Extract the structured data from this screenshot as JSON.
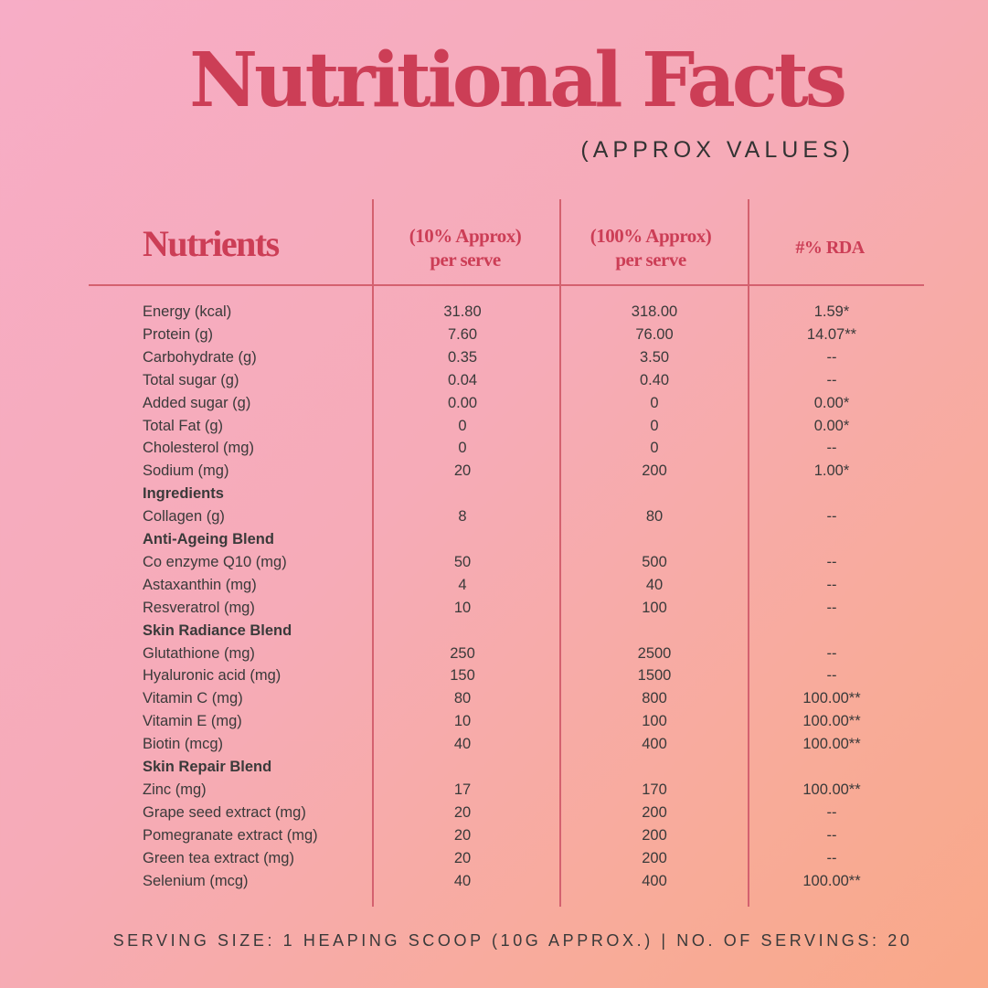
{
  "title": "Nutritional Facts",
  "subtitle": "(APPROX VALUES)",
  "headers": {
    "nutrients": "Nutrients",
    "col1_line1": "(10% Approx)",
    "col1_line2": "per serve",
    "col2_line1": "(100% Approx)",
    "col2_line2": "per serve",
    "col3": "#% RDA"
  },
  "rows": [
    {
      "name": "Energy (kcal)",
      "v1": "31.80",
      "v2": "318.00",
      "rda": "1.59*"
    },
    {
      "name": "Protein (g)",
      "v1": "7.60",
      "v2": "76.00",
      "rda": "14.07**"
    },
    {
      "name": "Carbohydrate (g)",
      "v1": "0.35",
      "v2": "3.50",
      "rda": "--"
    },
    {
      "name": "Total sugar (g)",
      "v1": "0.04",
      "v2": "0.40",
      "rda": "--"
    },
    {
      "name": "Added sugar (g)",
      "v1": "0.00",
      "v2": "0",
      "rda": "0.00*"
    },
    {
      "name": "Total Fat (g)",
      "v1": "0",
      "v2": "0",
      "rda": "0.00*"
    },
    {
      "name": "Cholesterol (mg)",
      "v1": "0",
      "v2": "0",
      "rda": "--"
    },
    {
      "name": "Sodium (mg)",
      "v1": "20",
      "v2": "200",
      "rda": "1.00*"
    },
    {
      "name": "Ingredients",
      "section": true
    },
    {
      "name": "Collagen (g)",
      "v1": "8",
      "v2": "80",
      "rda": "--"
    },
    {
      "name": "Anti-Ageing Blend",
      "section": true
    },
    {
      "name": "Co enzyme Q10 (mg)",
      "v1": "50",
      "v2": "500",
      "rda": "--"
    },
    {
      "name": "Astaxanthin (mg)",
      "v1": "4",
      "v2": "40",
      "rda": "--"
    },
    {
      "name": "Resveratrol (mg)",
      "v1": "10",
      "v2": "100",
      "rda": "--"
    },
    {
      "name": "Skin Radiance Blend",
      "section": true
    },
    {
      "name": "Glutathione (mg)",
      "v1": "250",
      "v2": "2500",
      "rda": "--"
    },
    {
      "name": "Hyaluronic acid (mg)",
      "v1": "150",
      "v2": "1500",
      "rda": "--"
    },
    {
      "name": "Vitamin C (mg)",
      "v1": "80",
      "v2": "800",
      "rda": "100.00**"
    },
    {
      "name": "Vitamin E (mg)",
      "v1": "10",
      "v2": "100",
      "rda": "100.00**"
    },
    {
      "name": "Biotin (mcg)",
      "v1": "40",
      "v2": "400",
      "rda": "100.00**"
    },
    {
      "name": "Skin Repair Blend",
      "section": true
    },
    {
      "name": "Zinc (mg)",
      "v1": "17",
      "v2": "170",
      "rda": "100.00**"
    },
    {
      "name": "Grape seed extract (mg)",
      "v1": "20",
      "v2": "200",
      "rda": "--"
    },
    {
      "name": "Pomegranate extract (mg)",
      "v1": "20",
      "v2": "200",
      "rda": "--"
    },
    {
      "name": "Green tea extract (mg)",
      "v1": "20",
      "v2": "200",
      "rda": "--"
    },
    {
      "name": "Selenium (mcg)",
      "v1": "40",
      "v2": "400",
      "rda": "100.00**"
    }
  ],
  "footer": "SERVING SIZE: 1 HEAPING SCOOP (10G APPROX.) | NO. OF SERVINGS: 20",
  "colors": {
    "accent": "#cc3e56",
    "text": "#3a3a3a",
    "line": "#d4616f"
  }
}
